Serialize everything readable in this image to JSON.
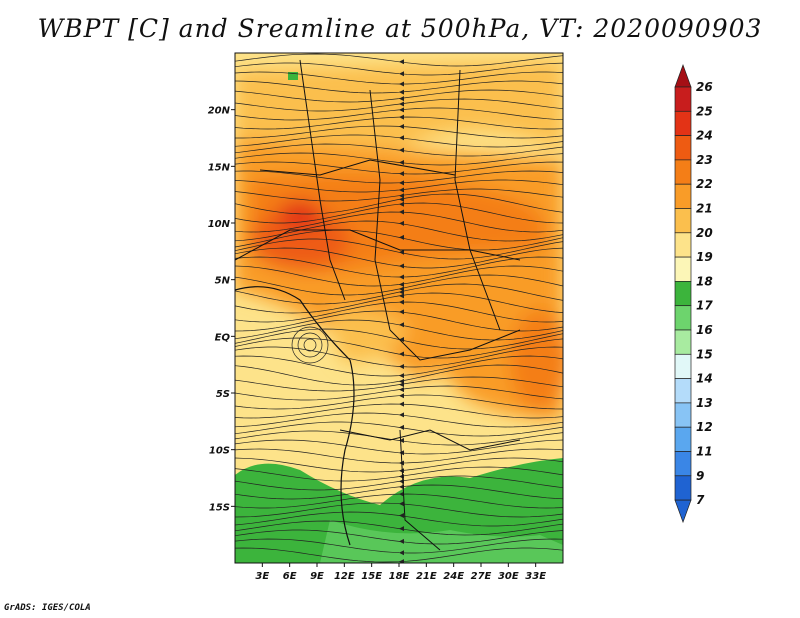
{
  "title": "WBPT [C] and Sreamline at 500hPa, VT: 2020090903",
  "footer": "GrADS: IGES/COLA",
  "map": {
    "lon_range": [
      0,
      36
    ],
    "lat_range": [
      -20,
      25
    ],
    "lon_labels": [
      "3E",
      "6E",
      "9E",
      "12E",
      "15E",
      "18E",
      "21E",
      "24E",
      "27E",
      "30E",
      "33E"
    ],
    "lat_labels": [
      "20N",
      "15N",
      "10N",
      "5N",
      "EQ",
      "5S",
      "10S",
      "15S"
    ]
  },
  "colorbar": {
    "labels": [
      "26",
      "25",
      "24",
      "23",
      "22",
      "21",
      "20",
      "19",
      "18",
      "17",
      "16",
      "15",
      "14",
      "13",
      "12",
      "11",
      "9",
      "7"
    ],
    "colors": [
      "#a50f15",
      "#c81d1d",
      "#e33316",
      "#ee5b12",
      "#f47e17",
      "#f99c28",
      "#fbbf4d",
      "#fde38a",
      "#fcf6b7",
      "#3cb43c",
      "#6dd46d",
      "#a8eba0",
      "#e1f8f8",
      "#b4dcfa",
      "#88c4f5",
      "#5aa7ef",
      "#3a86e6",
      "#1f63d2"
    ]
  }
}
